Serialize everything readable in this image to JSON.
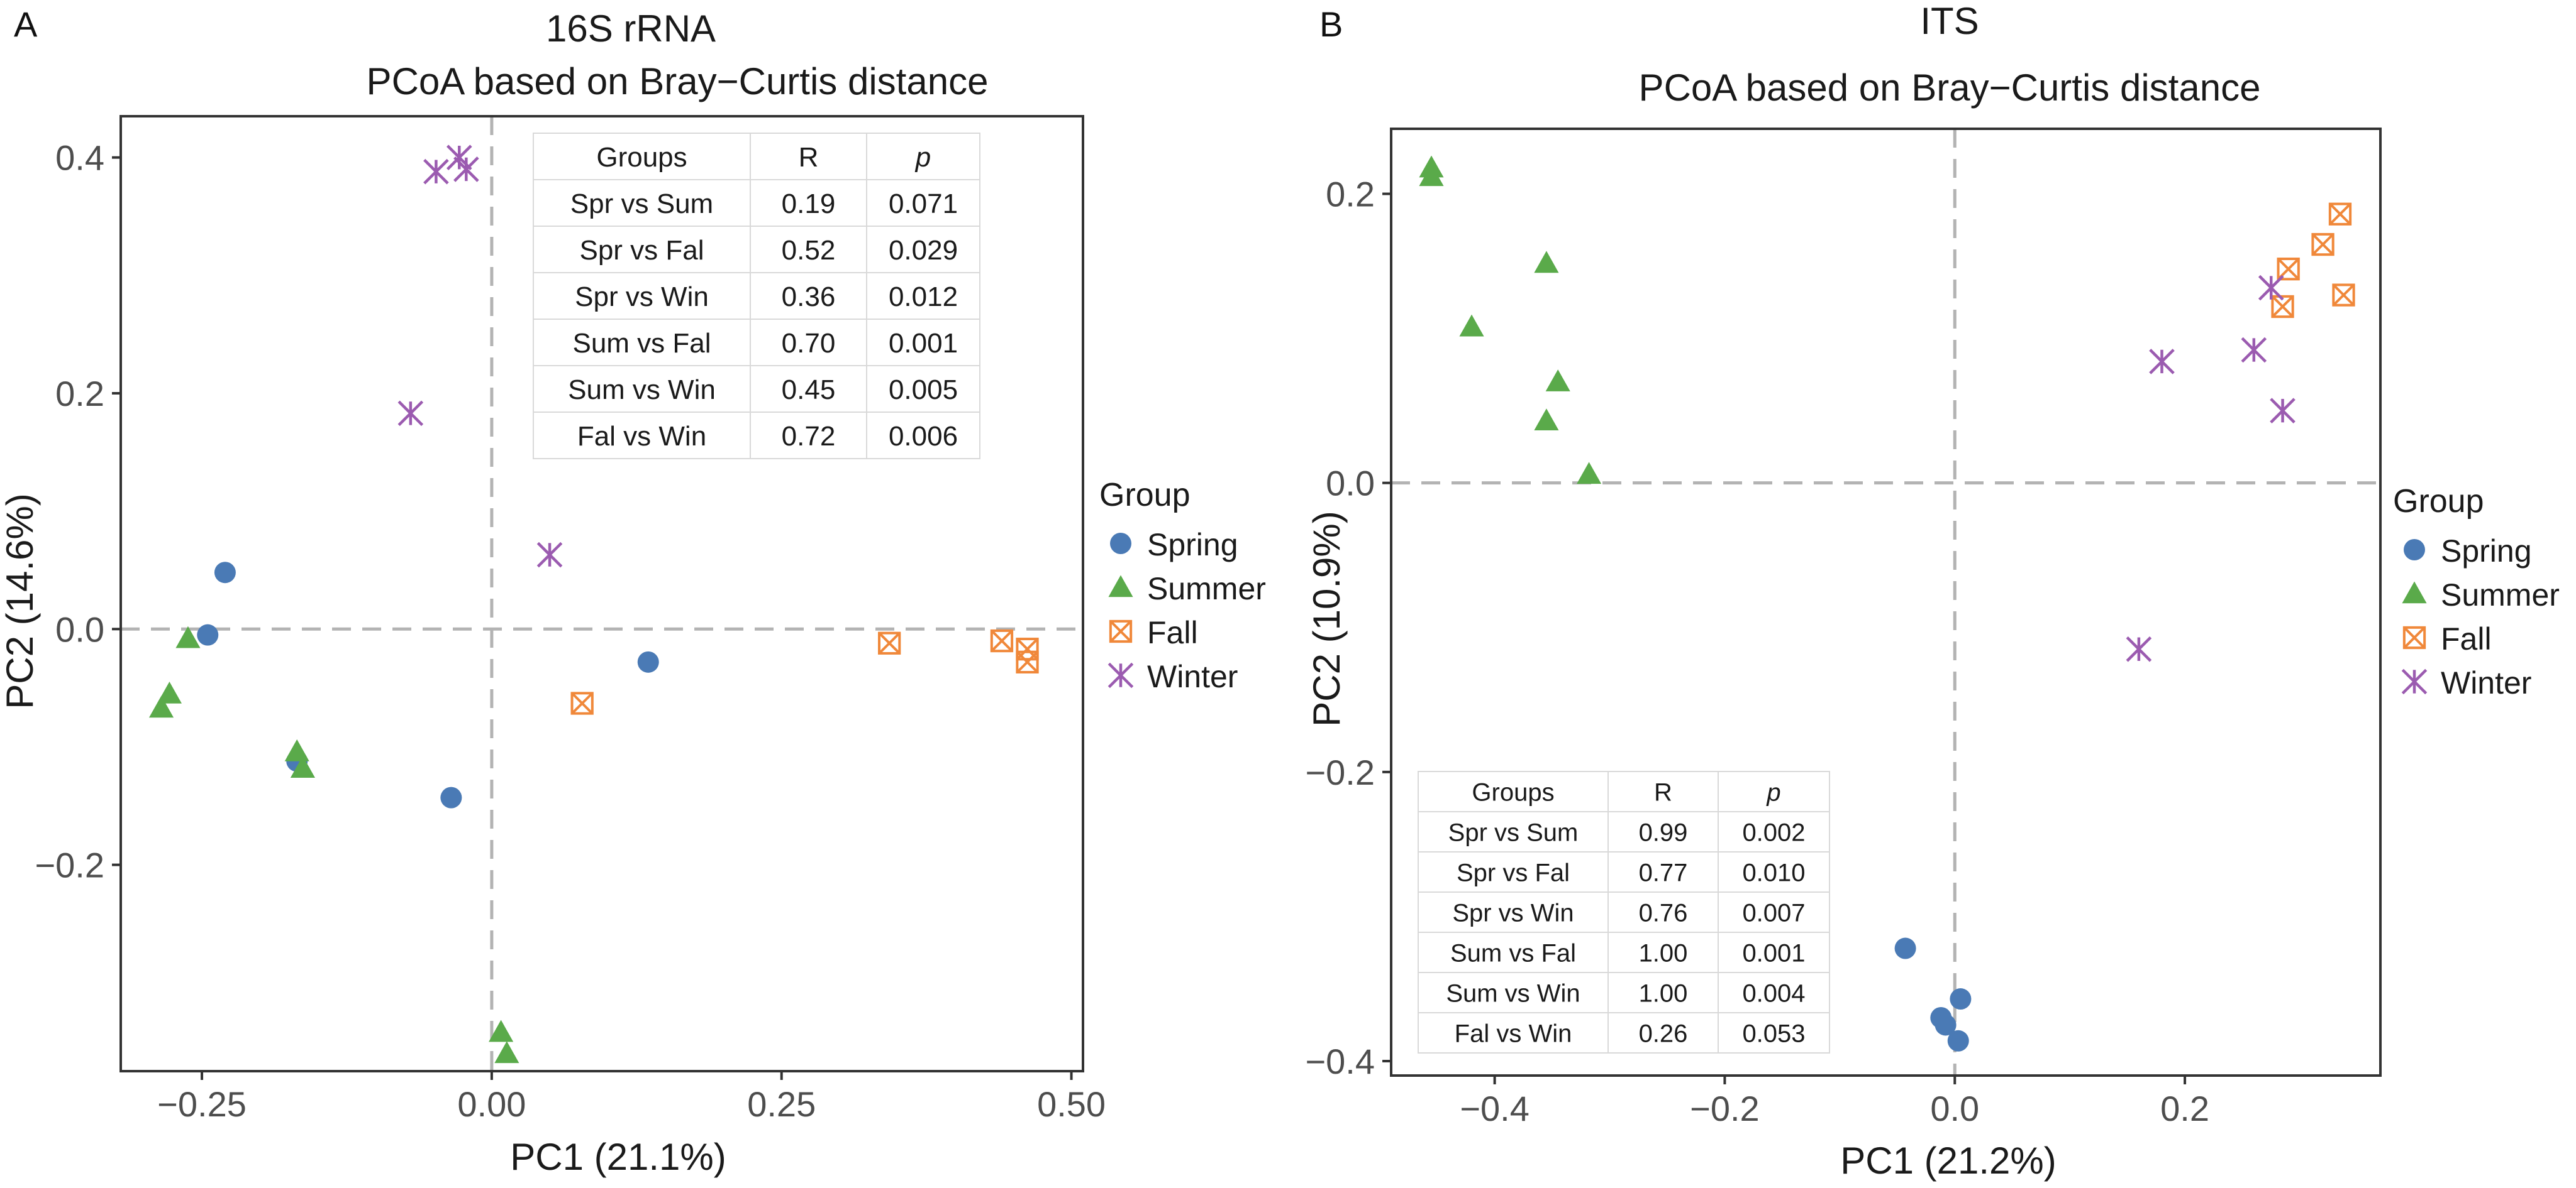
{
  "legend": {
    "title": "Group",
    "groups": [
      {
        "key": "Spring",
        "label": "Spring",
        "color": "#4a7ab5",
        "shape": "circle"
      },
      {
        "key": "Summer",
        "label": "Summer",
        "color": "#5aaa4a",
        "shape": "triangle"
      },
      {
        "key": "Fall",
        "label": "Fall",
        "color": "#f0883a",
        "shape": "boxed-x"
      },
      {
        "key": "Winter",
        "label": "Winter",
        "color": "#9b5bb0",
        "shape": "asterisk"
      }
    ]
  },
  "chart_data": [
    {
      "panel": "A",
      "type": "scatter",
      "title": "16S rRNA",
      "subtitle": "PCoA based on Bray−Curtis distance",
      "xlabel": "PC1 (21.1%)",
      "ylabel": "PC2 (14.6%)",
      "xlim": [
        -0.32,
        0.51
      ],
      "ylim": [
        -0.375,
        0.435
      ],
      "xticks": [
        {
          "value": -0.25,
          "label": "−0.25"
        },
        {
          "value": 0.0,
          "label": "0.00"
        },
        {
          "value": 0.25,
          "label": "0.25"
        },
        {
          "value": 0.5,
          "label": "0.50"
        }
      ],
      "yticks": [
        {
          "value": -0.2,
          "label": "−0.2"
        },
        {
          "value": 0.0,
          "label": "0.0"
        },
        {
          "value": 0.2,
          "label": "0.2"
        },
        {
          "value": 0.4,
          "label": "0.4"
        }
      ],
      "grid": false,
      "reference_lines": {
        "x": 0,
        "y": 0
      },
      "series": [
        {
          "name": "Spring",
          "points": [
            [
              -0.23,
              0.048
            ],
            [
              -0.245,
              -0.005
            ],
            [
              -0.168,
              -0.112
            ],
            [
              -0.035,
              -0.143
            ],
            [
              0.135,
              -0.028
            ]
          ]
        },
        {
          "name": "Summer",
          "points": [
            [
              -0.262,
              -0.008
            ],
            [
              -0.278,
              -0.055
            ],
            [
              -0.285,
              -0.067
            ],
            [
              -0.168,
              -0.104
            ],
            [
              -0.163,
              -0.118
            ],
            [
              0.008,
              -0.342
            ],
            [
              0.013,
              -0.36
            ]
          ]
        },
        {
          "name": "Fall",
          "points": [
            [
              0.078,
              -0.063
            ],
            [
              0.343,
              -0.012
            ],
            [
              0.44,
              -0.01
            ],
            [
              0.462,
              -0.017
            ],
            [
              0.462,
              -0.028
            ]
          ]
        },
        {
          "name": "Winter",
          "points": [
            [
              -0.048,
              0.388
            ],
            [
              -0.028,
              0.4
            ],
            [
              -0.022,
              0.39
            ],
            [
              -0.07,
              0.183
            ],
            [
              0.05,
              0.063
            ]
          ]
        }
      ],
      "stats_table": {
        "location": "top-right",
        "headers": [
          "Groups",
          "R",
          "p"
        ],
        "rows": [
          [
            "Spr vs Sum",
            "0.19",
            "0.071"
          ],
          [
            "Spr vs Fal",
            "0.52",
            "0.029"
          ],
          [
            "Spr vs Win",
            "0.36",
            "0.012"
          ],
          [
            "Sum vs Fal",
            "0.70",
            "0.001"
          ],
          [
            "Sum vs Win",
            "0.45",
            "0.005"
          ],
          [
            "Fal vs Win",
            "0.72",
            "0.006"
          ]
        ]
      }
    },
    {
      "panel": "B",
      "type": "scatter",
      "title": "ITS",
      "subtitle": "PCoA based on Bray−Curtis distance",
      "xlabel": "PC1 (21.2%)",
      "ylabel": "PC2 (10.9%)",
      "xlim": [
        -0.49,
        0.37
      ],
      "ylim": [
        -0.41,
        0.245
      ],
      "xticks": [
        {
          "value": -0.4,
          "label": "−0.4"
        },
        {
          "value": -0.2,
          "label": "−0.2"
        },
        {
          "value": 0.0,
          "label": "0.0"
        },
        {
          "value": 0.2,
          "label": "0.2"
        }
      ],
      "yticks": [
        {
          "value": -0.4,
          "label": "−0.4"
        },
        {
          "value": -0.2,
          "label": "−0.2"
        },
        {
          "value": 0.0,
          "label": "0.0"
        },
        {
          "value": 0.2,
          "label": "0.2"
        }
      ],
      "grid": false,
      "reference_lines": {
        "x": 0,
        "y": 0
      },
      "series": [
        {
          "name": "Spring",
          "points": [
            [
              -0.043,
              -0.322
            ],
            [
              -0.012,
              -0.37
            ],
            [
              -0.008,
              -0.375
            ],
            [
              0.005,
              -0.357
            ],
            [
              0.003,
              -0.386
            ]
          ]
        },
        {
          "name": "Summer",
          "points": [
            [
              -0.455,
              0.218
            ],
            [
              -0.455,
              0.212
            ],
            [
              -0.355,
              0.152
            ],
            [
              -0.42,
              0.108
            ],
            [
              -0.345,
              0.07
            ],
            [
              -0.355,
              0.043
            ],
            [
              -0.318,
              0.006
            ]
          ]
        },
        {
          "name": "Fall",
          "points": [
            [
              0.335,
              0.186
            ],
            [
              0.32,
              0.165
            ],
            [
              0.29,
              0.148
            ],
            [
              0.285,
              0.122
            ],
            [
              0.338,
              0.13
            ]
          ]
        },
        {
          "name": "Winter",
          "points": [
            [
              0.275,
              0.135
            ],
            [
              0.18,
              0.084
            ],
            [
              0.26,
              0.092
            ],
            [
              0.285,
              0.05
            ],
            [
              0.16,
              -0.115
            ]
          ]
        }
      ],
      "stats_table": {
        "location": "bottom-left",
        "headers": [
          "Groups",
          "R",
          "p"
        ],
        "rows": [
          [
            "Spr vs Sum",
            "0.99",
            "0.002"
          ],
          [
            "Spr vs Fal",
            "0.77",
            "0.010"
          ],
          [
            "Spr vs Win",
            "0.76",
            "0.007"
          ],
          [
            "Sum vs Fal",
            "1.00",
            "0.001"
          ],
          [
            "Sum vs Win",
            "1.00",
            "0.004"
          ],
          [
            "Fal vs Win",
            "0.26",
            "0.053"
          ]
        ]
      }
    }
  ]
}
